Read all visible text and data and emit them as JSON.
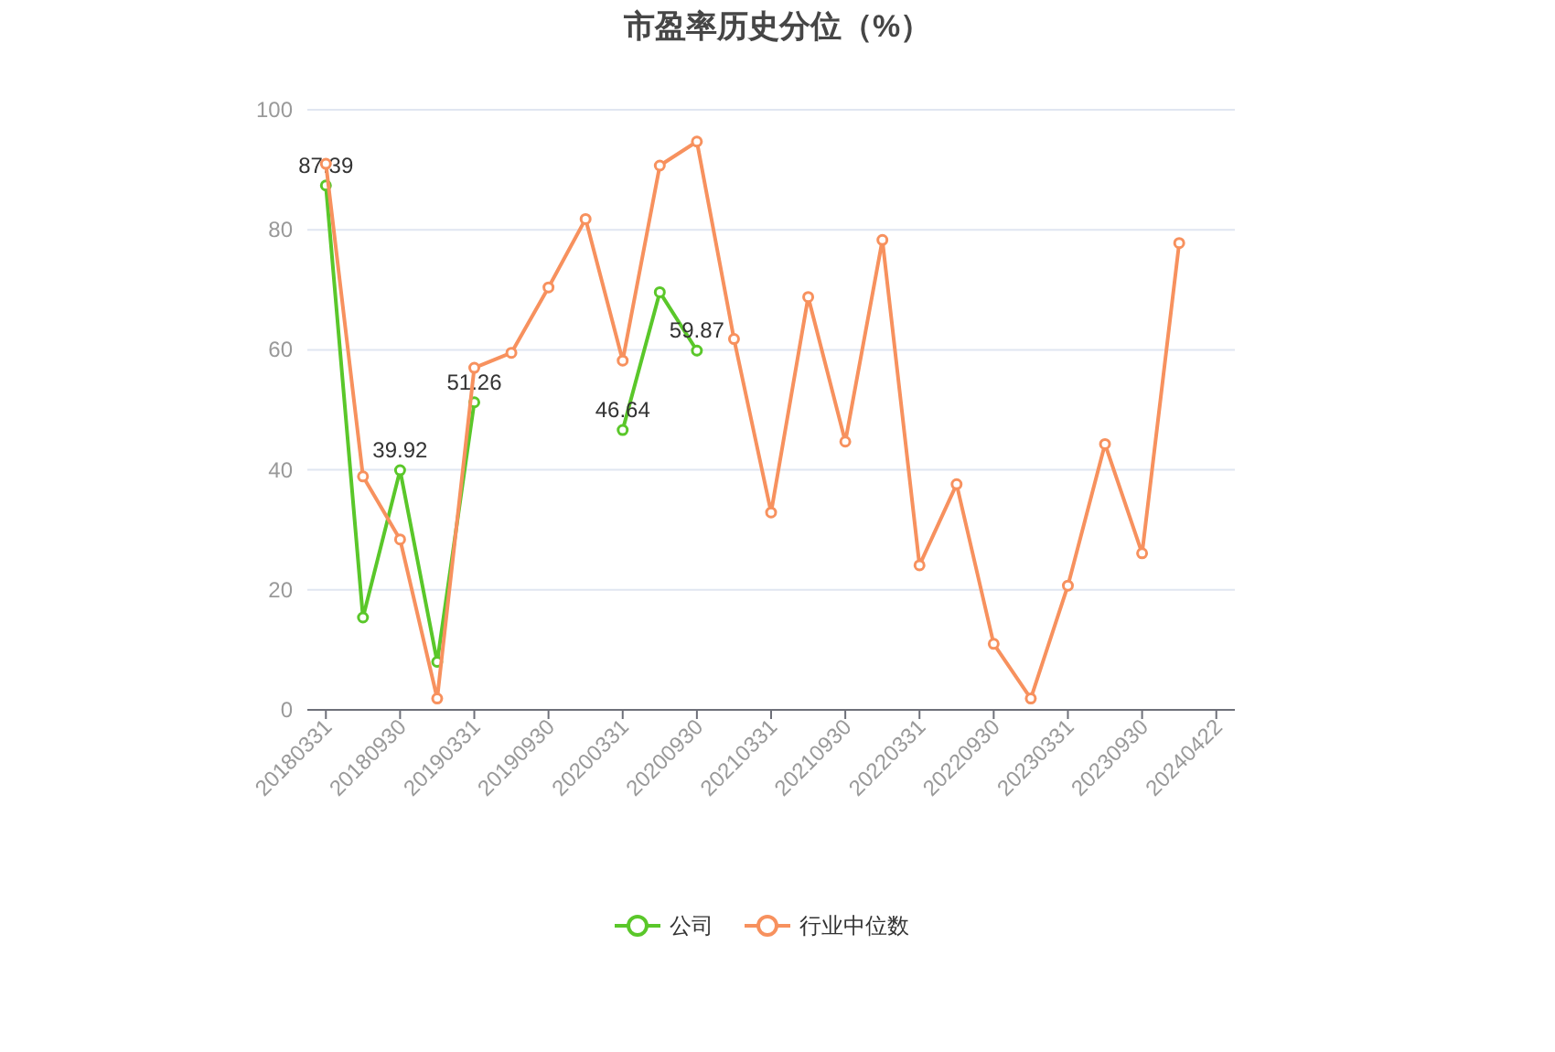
{
  "chart_data": {
    "type": "line",
    "title": "市盈率历史分位（%）",
    "categories": [
      "20180331",
      null,
      "20180930",
      null,
      "20190331",
      null,
      "20190930",
      null,
      "20200331",
      null,
      "20200930",
      null,
      "20210331",
      null,
      "20210930",
      null,
      "20220331",
      null,
      "20220930",
      null,
      "20230331",
      null,
      "20230930",
      null,
      "20240422"
    ],
    "series": [
      {
        "name": "公司",
        "color": "#5ac72a",
        "values": [
          87.39,
          15.4,
          39.92,
          8.0,
          51.26,
          null,
          null,
          null,
          46.64,
          69.6,
          59.87,
          null,
          null,
          null,
          null,
          null,
          null,
          null,
          null,
          null,
          null,
          null,
          null,
          null,
          null
        ],
        "value_labels": [
          "87.39",
          null,
          "39.92",
          null,
          "51.26",
          null,
          null,
          null,
          "46.64",
          null,
          "59.87",
          null,
          null,
          null,
          null,
          null,
          null,
          null,
          null,
          null,
          null,
          null,
          null,
          null,
          null
        ]
      },
      {
        "name": "行业中位数",
        "color": "#f7915e",
        "values": [
          91.0,
          38.9,
          28.4,
          1.9,
          57.0,
          59.5,
          70.4,
          81.8,
          58.2,
          90.7,
          94.7,
          61.8,
          32.9,
          68.8,
          44.7,
          78.3,
          24.1,
          37.6,
          11.0,
          1.9,
          20.7,
          44.3,
          26.1,
          77.8,
          null
        ]
      }
    ],
    "ylim": [
      0,
      100
    ],
    "yticks": [
      0,
      20,
      40,
      60,
      80,
      100
    ],
    "grid": "y",
    "legend": "bottom",
    "marker": "circle",
    "line_style": "solid"
  }
}
